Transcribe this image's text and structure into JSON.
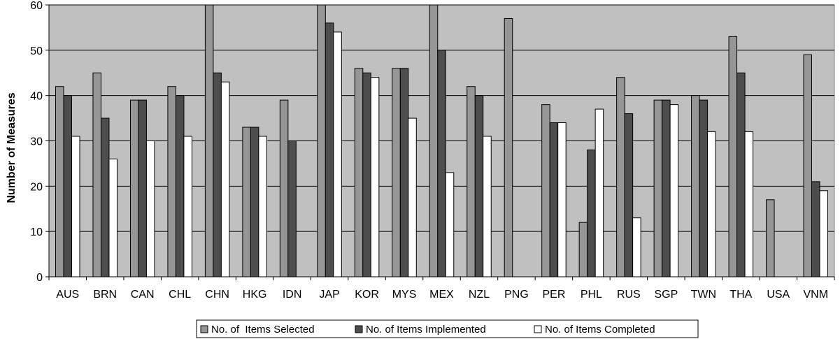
{
  "chart_data": {
    "type": "bar",
    "title": "",
    "xlabel": "",
    "ylabel": "Number of Measures",
    "ylim": [
      0,
      60
    ],
    "yticks": [
      0,
      10,
      20,
      30,
      40,
      50,
      60
    ],
    "grid": true,
    "legend_position": "bottom",
    "plot_background": "#C0C0C0",
    "categories": [
      "AUS",
      "BRN",
      "CAN",
      "CHL",
      "CHN",
      "HKG",
      "IDN",
      "JAP",
      "KOR",
      "MYS",
      "MEX",
      "NZL",
      "PNG",
      "PER",
      "PHL",
      "RUS",
      "SGP",
      "TWN",
      "THA",
      "USA",
      "VNM"
    ],
    "series": [
      {
        "name": "No. of  Items Selected",
        "color": "#969696",
        "values": [
          42,
          45,
          39,
          42,
          60,
          33,
          39,
          60,
          46,
          46,
          60,
          42,
          57,
          38,
          12,
          44,
          39,
          40,
          53,
          17,
          49
        ]
      },
      {
        "name": "No. of Items Implemented",
        "color": "#4D4D4D",
        "values": [
          40,
          35,
          39,
          40,
          45,
          33,
          30,
          56,
          45,
          46,
          50,
          40,
          null,
          34,
          28,
          36,
          39,
          39,
          45,
          null,
          21
        ]
      },
      {
        "name": "No. of Items Completed",
        "color": "#FFFFFF",
        "values": [
          31,
          26,
          30,
          31,
          43,
          31,
          null,
          54,
          44,
          35,
          23,
          31,
          null,
          34,
          37,
          13,
          38,
          32,
          32,
          null,
          19
        ]
      }
    ]
  }
}
